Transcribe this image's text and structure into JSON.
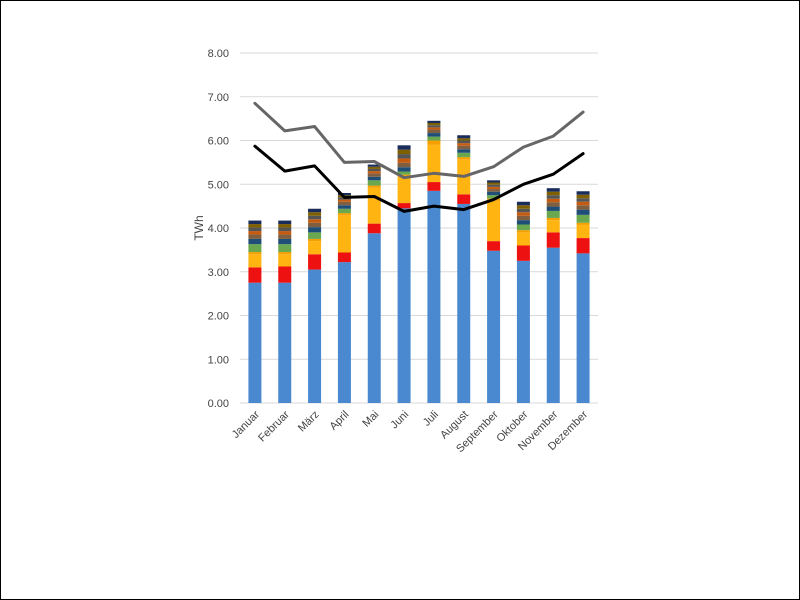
{
  "chart_data": {
    "type": "bar",
    "ylabel": "TWh",
    "ylim": [
      0,
      8
    ],
    "yticks": [
      "0.00",
      "1.00",
      "2.00",
      "3.00",
      "4.00",
      "5.00",
      "6.00",
      "7.00",
      "8.00"
    ],
    "grid": true,
    "categories": [
      "Januar",
      "Februar",
      "März",
      "April",
      "Mai",
      "Juni",
      "Juli",
      "August",
      "September",
      "Oktober",
      "November",
      "Dezember"
    ],
    "stack_colors": [
      "#4a89d0",
      "#ee1111",
      "#ffb412",
      "#f5a000",
      "#6aa84f",
      "#1f4e79",
      "#7f5f3f",
      "#c55a11",
      "#555555",
      "#7f6000",
      "#1a2d5a"
    ],
    "series": [
      {
        "values": [
          2.75,
          2.75,
          3.05,
          3.22,
          3.88,
          4.45,
          4.85,
          4.55,
          3.48,
          3.25,
          3.55,
          3.42
        ]
      },
      {
        "values": [
          0.35,
          0.37,
          0.35,
          0.22,
          0.22,
          0.12,
          0.2,
          0.22,
          0.22,
          0.35,
          0.35,
          0.35
        ]
      },
      {
        "values": [
          0.3,
          0.28,
          0.3,
          0.85,
          0.82,
          0.6,
          0.85,
          0.8,
          0.92,
          0.3,
          0.28,
          0.3
        ]
      },
      {
        "values": [
          0.05,
          0.05,
          0.05,
          0.05,
          0.05,
          0.05,
          0.1,
          0.05,
          0.05,
          0.05,
          0.05,
          0.05
        ]
      },
      {
        "values": [
          0.18,
          0.18,
          0.15,
          0.1,
          0.12,
          0.07,
          0.09,
          0.1,
          0.08,
          0.13,
          0.16,
          0.18
        ]
      },
      {
        "values": [
          0.12,
          0.12,
          0.12,
          0.08,
          0.08,
          0.1,
          0.08,
          0.08,
          0.08,
          0.1,
          0.1,
          0.12
        ]
      },
      {
        "values": [
          0.1,
          0.1,
          0.1,
          0.08,
          0.08,
          0.1,
          0.08,
          0.08,
          0.06,
          0.1,
          0.1,
          0.1
        ]
      },
      {
        "values": [
          0.08,
          0.08,
          0.08,
          0.05,
          0.05,
          0.1,
          0.05,
          0.06,
          0.05,
          0.08,
          0.08,
          0.08
        ]
      },
      {
        "values": [
          0.08,
          0.08,
          0.08,
          0.05,
          0.05,
          0.1,
          0.05,
          0.06,
          0.05,
          0.08,
          0.08,
          0.08
        ]
      },
      {
        "values": [
          0.08,
          0.08,
          0.08,
          0.05,
          0.05,
          0.1,
          0.05,
          0.05,
          0.05,
          0.08,
          0.08,
          0.08
        ]
      },
      {
        "values": [
          0.08,
          0.08,
          0.08,
          0.05,
          0.05,
          0.1,
          0.05,
          0.07,
          0.05,
          0.08,
          0.08,
          0.08
        ]
      }
    ],
    "lines": [
      {
        "color": "#666666",
        "values": [
          6.85,
          6.22,
          6.32,
          5.5,
          5.52,
          5.15,
          5.25,
          5.18,
          5.4,
          5.85,
          6.1,
          6.65
        ]
      },
      {
        "color": "#000000",
        "values": [
          5.87,
          5.3,
          5.42,
          4.7,
          4.72,
          4.38,
          4.5,
          4.42,
          4.65,
          5.0,
          5.23,
          5.7
        ]
      }
    ]
  }
}
